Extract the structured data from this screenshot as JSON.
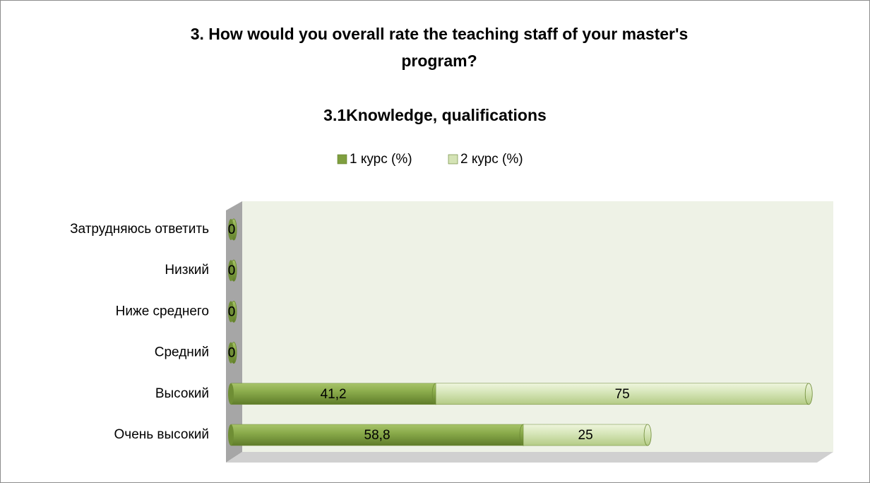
{
  "chart_data": {
    "type": "bar",
    "orientation": "horizontal",
    "stacked": true,
    "title": "3. How would you overall rate the teaching staff of your master's program?",
    "subtitle": "3.1Knowledge, qualifications",
    "categories": [
      "Очень высокий",
      "Высокий",
      "Средний",
      "Ниже среднего",
      "Низкий",
      "Затрудняюсь ответить"
    ],
    "series": [
      {
        "name": "1 курс (%)",
        "color": "#7f9f3f",
        "values": [
          58.8,
          41.2,
          0,
          0,
          0,
          0
        ],
        "value_labels": [
          "58,8",
          "41,2",
          "0",
          "0",
          "0",
          "0"
        ]
      },
      {
        "name": "2 курс (%)",
        "color": "#d4e3b5",
        "values": [
          25,
          75,
          0,
          0,
          0,
          0
        ]
      }
    ],
    "xlim": [
      0,
      120
    ],
    "legend": "top"
  }
}
